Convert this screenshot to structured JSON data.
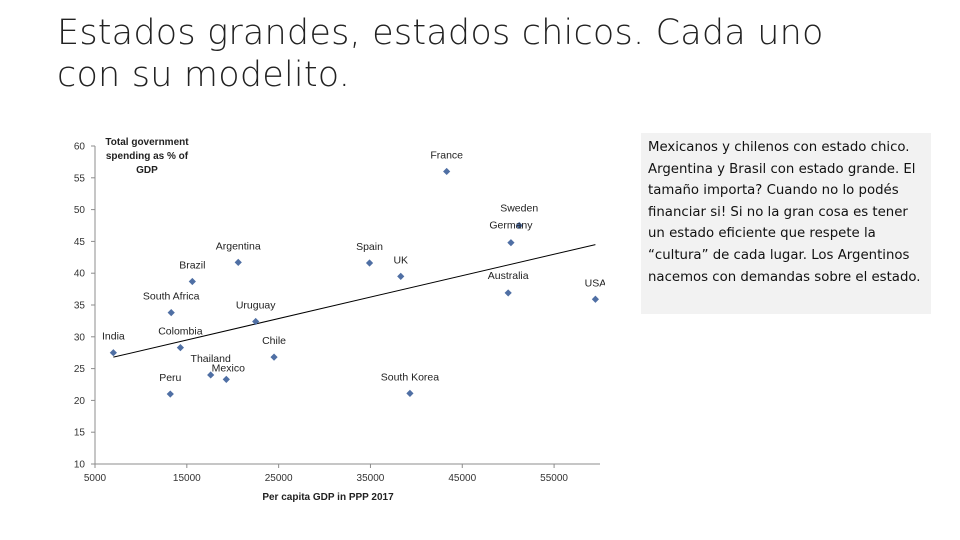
{
  "slide": {
    "title": "Estados grandes, estados chicos. Cada uno con su modelito.",
    "note": "Mexicanos y chilenos con estado chico. Argentina y Brasil con estado grande. El tamaño importa? Cuando no lo podés financiar si! Si no la gran cosa es tener un estado eficiente que respete la “cultura” de cada lugar. Los Argentinos nacemos con demandas sobre el estado."
  },
  "chart_data": {
    "type": "scatter",
    "title": "",
    "ylabel": "Total government spending as % of GDP",
    "ylabel_lines": [
      "Total government",
      "spending as % of",
      "GDP"
    ],
    "xlabel": "Per capita GDP in PPP 2017",
    "xlim": [
      5000,
      60000
    ],
    "ylim": [
      10,
      60
    ],
    "xticks": [
      5000,
      15000,
      25000,
      35000,
      45000,
      55000
    ],
    "yticks": [
      10,
      15,
      20,
      25,
      30,
      35,
      40,
      45,
      50,
      55,
      60
    ],
    "grid": false,
    "marker_color": "#4f6fa4",
    "trendline": {
      "color": "#000000",
      "from": [
        7000,
        26.8
      ],
      "to": [
        59500,
        44.5
      ]
    },
    "points": [
      {
        "label": "France",
        "x": 43300,
        "y": 56.0
      },
      {
        "label": "Sweden",
        "x": 51200,
        "y": 47.5
      },
      {
        "label": "Germany",
        "x": 50300,
        "y": 44.8
      },
      {
        "label": "Argentina",
        "x": 20600,
        "y": 41.7
      },
      {
        "label": "Spain",
        "x": 34900,
        "y": 41.6
      },
      {
        "label": "UK",
        "x": 38300,
        "y": 39.5
      },
      {
        "label": "Brazil",
        "x": 15600,
        "y": 38.7
      },
      {
        "label": "Australia",
        "x": 50000,
        "y": 36.9
      },
      {
        "label": "USA",
        "x": 59500,
        "y": 35.9
      },
      {
        "label": "South Africa",
        "x": 13300,
        "y": 33.8
      },
      {
        "label": "Uruguay",
        "x": 22500,
        "y": 32.4
      },
      {
        "label": "India",
        "x": 7000,
        "y": 27.5
      },
      {
        "label": "Colombia",
        "x": 14300,
        "y": 28.3
      },
      {
        "label": "Chile",
        "x": 24500,
        "y": 26.8
      },
      {
        "label": "Thailand",
        "x": 17600,
        "y": 24.0
      },
      {
        "label": "Mexico",
        "x": 19300,
        "y": 23.3
      },
      {
        "label": "Peru",
        "x": 13200,
        "y": 21.0
      },
      {
        "label": "South Korea",
        "x": 39300,
        "y": 21.1
      }
    ]
  }
}
